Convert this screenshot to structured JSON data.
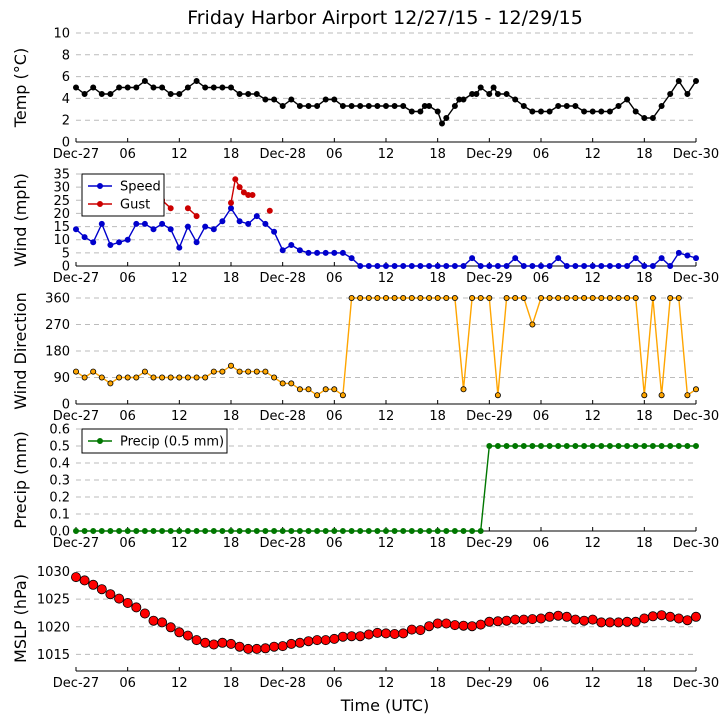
{
  "title": "Friday Harbor Airport 12/27/15 - 12/29/15",
  "xlabel": "Time (UTC)",
  "x_ticks": [
    "Dec-27",
    "06",
    "12",
    "18",
    "Dec-28",
    "06",
    "12",
    "18",
    "Dec-29",
    "06",
    "12",
    "18",
    "Dec-30"
  ],
  "colors": {
    "temp": "#000000",
    "speed": "#0000cc",
    "gust": "#cc0000",
    "direction": "#ffa500",
    "precip": "#007700",
    "mslp": "#ff0000",
    "grid": "#bbbbbb"
  },
  "chart_data": [
    {
      "type": "line",
      "ylabel": "Temp (°C)",
      "ylim": [
        0,
        10
      ],
      "yticks": [
        "0",
        "2",
        "4",
        "6",
        "8",
        "10"
      ],
      "x_hours_range": [
        0,
        72
      ],
      "series": [
        {
          "x": [
            0,
            1,
            2,
            3,
            4,
            5,
            6,
            7,
            8,
            9,
            10,
            11,
            12,
            13,
            14,
            15,
            16,
            17,
            18,
            19,
            20,
            21,
            22,
            23,
            24,
            25,
            26,
            27,
            28,
            29,
            30,
            31,
            32,
            33,
            34,
            35,
            36,
            37,
            38,
            39,
            40,
            40.5,
            41,
            42,
            42.5,
            43,
            44,
            44.5,
            45,
            46,
            46.5,
            47,
            48,
            48.5,
            49,
            50,
            51,
            52,
            53,
            54,
            55,
            56,
            57,
            58,
            59,
            60,
            61,
            62,
            63,
            64,
            65,
            66,
            67,
            68,
            69,
            70,
            71,
            72
          ],
          "y": [
            5,
            4.4,
            5,
            4.4,
            4.4,
            5,
            5,
            5,
            5.6,
            5,
            5,
            4.4,
            4.4,
            5,
            5.6,
            5,
            5,
            5,
            5,
            4.4,
            4.4,
            4.4,
            3.9,
            3.9,
            3.3,
            3.9,
            3.3,
            3.3,
            3.3,
            3.9,
            3.9,
            3.3,
            3.3,
            3.3,
            3.3,
            3.3,
            3.3,
            3.3,
            3.3,
            2.8,
            2.8,
            3.3,
            3.3,
            2.8,
            1.7,
            2.2,
            3.3,
            3.9,
            3.9,
            4.4,
            4.4,
            5,
            4.4,
            5,
            4.4,
            4.4,
            3.9,
            3.3,
            2.8,
            2.8,
            2.8,
            3.3,
            3.3,
            3.3,
            2.8,
            2.8,
            2.8,
            2.8,
            3.3,
            3.9,
            2.8,
            2.2,
            2.2,
            3.3,
            4.4,
            5.6,
            4.4,
            5.6
          ]
        }
      ]
    },
    {
      "type": "line",
      "ylabel": "Wind (mph)",
      "ylim": [
        0,
        35
      ],
      "yticks": [
        "0",
        "5",
        "10",
        "15",
        "20",
        "25",
        "30",
        "35"
      ],
      "legend": "top-left",
      "series": [
        {
          "name": "Speed",
          "x": [
            0,
            1,
            2,
            3,
            4,
            5,
            6,
            7,
            8,
            9,
            10,
            11,
            12,
            13,
            14,
            15,
            16,
            17,
            18,
            19,
            20,
            21,
            22,
            23,
            24,
            25,
            26,
            27,
            28,
            29,
            30,
            31,
            32,
            33,
            34,
            35,
            36,
            37,
            38,
            39,
            40,
            41,
            42,
            43,
            44,
            45,
            46,
            47,
            48,
            49,
            50,
            51,
            52,
            53,
            54,
            55,
            56,
            57,
            58,
            59,
            60,
            61,
            62,
            63,
            64,
            65,
            66,
            67,
            68,
            69,
            70,
            71,
            72
          ],
          "y": [
            14,
            11,
            9,
            16,
            8,
            9,
            10,
            16,
            16,
            14,
            16,
            14,
            7,
            15,
            9,
            15,
            14,
            17,
            22,
            17,
            16,
            19,
            16,
            13,
            6,
            8,
            6,
            5,
            5,
            5,
            5,
            5,
            3,
            0,
            0,
            0,
            0,
            0,
            0,
            0,
            0,
            0,
            0,
            0,
            0,
            0,
            3,
            0,
            0,
            0,
            0,
            3,
            0,
            0,
            0,
            0,
            3,
            0,
            0,
            0,
            0,
            0,
            0,
            0,
            0,
            3,
            0,
            0,
            3,
            0,
            5,
            4,
            3
          ]
        },
        {
          "name": "Gust",
          "x": [
            10,
            11,
            13,
            14,
            18,
            18.5,
            19,
            19.5,
            20,
            20.5,
            22.5
          ],
          "y": [
            25,
            22,
            22,
            19,
            24,
            33,
            30,
            28,
            27,
            27,
            21
          ]
        }
      ]
    },
    {
      "type": "scatter",
      "ylabel": "Wind Direction",
      "ylim": [
        0,
        360
      ],
      "yticks": [
        "0",
        "90",
        "180",
        "270",
        "360"
      ],
      "series": [
        {
          "x": [
            0,
            1,
            2,
            3,
            4,
            5,
            6,
            7,
            8,
            9,
            10,
            11,
            12,
            13,
            14,
            15,
            16,
            17,
            18,
            19,
            20,
            21,
            22,
            23,
            24,
            25,
            26,
            27,
            28,
            29,
            30,
            31,
            32,
            33,
            34,
            35,
            36,
            37,
            38,
            39,
            40,
            41,
            42,
            43,
            44,
            45,
            46,
            47,
            48,
            49,
            50,
            51,
            52,
            53,
            54,
            55,
            56,
            57,
            58,
            59,
            60,
            61,
            62,
            63,
            64,
            65,
            66,
            67,
            68,
            69,
            70,
            71,
            72
          ],
          "y": [
            110,
            90,
            110,
            90,
            70,
            90,
            90,
            90,
            110,
            90,
            90,
            90,
            90,
            90,
            90,
            90,
            110,
            110,
            130,
            110,
            110,
            110,
            110,
            90,
            70,
            70,
            50,
            50,
            30,
            50,
            50,
            30,
            360,
            360,
            360,
            360,
            360,
            360,
            360,
            360,
            360,
            360,
            360,
            360,
            360,
            50,
            360,
            360,
            360,
            30,
            360,
            360,
            360,
            270,
            360,
            360,
            360,
            360,
            360,
            360,
            360,
            360,
            360,
            360,
            360,
            360,
            30,
            360,
            30,
            360,
            360,
            30,
            50
          ]
        }
      ]
    },
    {
      "type": "line",
      "ylabel": "Precip (mm)",
      "ylim": [
        0,
        0.6
      ],
      "yticks": [
        "0.0",
        "0.1",
        "0.2",
        "0.3",
        "0.4",
        "0.5",
        "0.6"
      ],
      "legend": "top-left",
      "series": [
        {
          "name": "Precip (0.5 mm)",
          "x": [
            0,
            1,
            2,
            3,
            4,
            5,
            6,
            7,
            8,
            9,
            10,
            11,
            12,
            13,
            14,
            15,
            16,
            17,
            18,
            19,
            20,
            21,
            22,
            23,
            24,
            25,
            26,
            27,
            28,
            29,
            30,
            31,
            32,
            33,
            34,
            35,
            36,
            37,
            38,
            39,
            40,
            41,
            42,
            43,
            44,
            45,
            46,
            47,
            48,
            49,
            50,
            51,
            52,
            53,
            54,
            55,
            56,
            57,
            58,
            59,
            60,
            61,
            62,
            63,
            64,
            65,
            66,
            67,
            68,
            69,
            70,
            71,
            72
          ],
          "y": [
            0,
            0,
            0,
            0,
            0,
            0,
            0,
            0,
            0,
            0,
            0,
            0,
            0,
            0,
            0,
            0,
            0,
            0,
            0,
            0,
            0,
            0,
            0,
            0,
            0,
            0,
            0,
            0,
            0,
            0,
            0,
            0,
            0,
            0,
            0,
            0,
            0,
            0,
            0,
            0,
            0,
            0,
            0,
            0,
            0,
            0,
            0,
            0,
            0.5,
            0.5,
            0.5,
            0.5,
            0.5,
            0.5,
            0.5,
            0.5,
            0.5,
            0.5,
            0.5,
            0.5,
            0.5,
            0.5,
            0.5,
            0.5,
            0.5,
            0.5,
            0.5,
            0.5,
            0.5,
            0.5,
            0.5,
            0.5,
            0.5
          ]
        }
      ]
    },
    {
      "type": "scatter",
      "ylabel": "MSLP (hPa)",
      "ylim": [
        1012,
        1031
      ],
      "yticks": [
        "1015",
        "1020",
        "1025",
        "1030"
      ],
      "series": [
        {
          "x": [
            0,
            1,
            2,
            3,
            4,
            5,
            6,
            7,
            8,
            9,
            10,
            11,
            12,
            13,
            14,
            15,
            16,
            17,
            18,
            19,
            20,
            21,
            22,
            23,
            24,
            25,
            26,
            27,
            28,
            29,
            30,
            31,
            32,
            33,
            34,
            35,
            36,
            37,
            38,
            39,
            40,
            41,
            42,
            43,
            44,
            45,
            46,
            47,
            48,
            49,
            50,
            51,
            52,
            53,
            54,
            55,
            56,
            57,
            58,
            59,
            60,
            61,
            62,
            63,
            64,
            65,
            66,
            67,
            68,
            69,
            70,
            71,
            72
          ],
          "y": [
            1029,
            1028.4,
            1027.6,
            1026.8,
            1025.9,
            1025.1,
            1024.3,
            1023.5,
            1022.4,
            1021.1,
            1020.8,
            1019.9,
            1019,
            1018.4,
            1017.6,
            1017.1,
            1016.8,
            1017.1,
            1016.9,
            1016.4,
            1016,
            1016,
            1016.1,
            1016.4,
            1016.5,
            1016.9,
            1017.1,
            1017.4,
            1017.6,
            1017.6,
            1017.8,
            1018.2,
            1018.3,
            1018.3,
            1018.6,
            1018.9,
            1018.8,
            1018.7,
            1018.8,
            1019.5,
            1019.4,
            1020.1,
            1020.6,
            1020.6,
            1020.3,
            1020.2,
            1020.1,
            1020.4,
            1020.9,
            1021,
            1021.1,
            1021.3,
            1021.3,
            1021.4,
            1021.5,
            1021.8,
            1022,
            1021.8,
            1021.3,
            1021.1,
            1021.3,
            1020.8,
            1020.8,
            1020.8,
            1020.9,
            1020.9,
            1021.5,
            1021.9,
            1022.1,
            1021.8,
            1021.5,
            1021.2,
            1021.8
          ]
        }
      ]
    }
  ]
}
